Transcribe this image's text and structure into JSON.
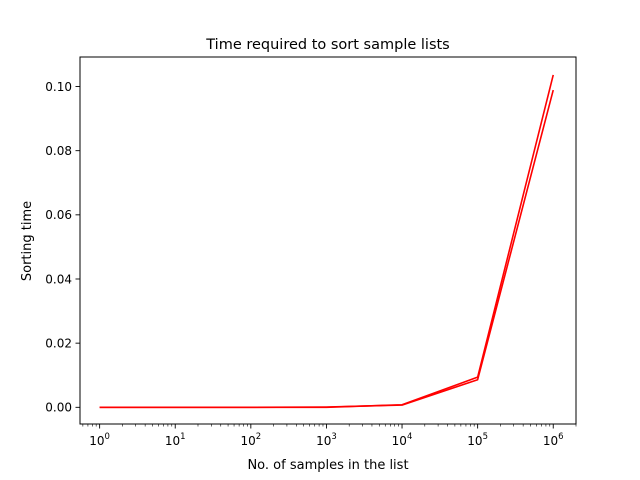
{
  "chart_data": {
    "type": "line",
    "title": "Time required to sort sample lists",
    "xlabel": "No. of samples in the list",
    "ylabel": "Sorting time",
    "xscale": "log",
    "xlim": [
      0.55,
      2000000
    ],
    "ylim": [
      -0.0052,
      0.1092
    ],
    "grid": false,
    "line_color": "#ff0000",
    "x_ticks": [
      {
        "value": 1,
        "base": "10",
        "exp": "0"
      },
      {
        "value": 10,
        "base": "10",
        "exp": "1"
      },
      {
        "value": 100,
        "base": "10",
        "exp": "2"
      },
      {
        "value": 1000,
        "base": "10",
        "exp": "3"
      },
      {
        "value": 10000,
        "base": "10",
        "exp": "4"
      },
      {
        "value": 100000,
        "base": "10",
        "exp": "5"
      },
      {
        "value": 1000000,
        "base": "10",
        "exp": "6"
      }
    ],
    "y_ticks": [
      {
        "value": 0.0,
        "label": "0.00"
      },
      {
        "value": 0.02,
        "label": "0.02"
      },
      {
        "value": 0.04,
        "label": "0.04"
      },
      {
        "value": 0.06,
        "label": "0.06"
      },
      {
        "value": 0.08,
        "label": "0.08"
      },
      {
        "value": 0.1,
        "label": "0.10"
      }
    ],
    "x": [
      1,
      10,
      100,
      1000,
      10000,
      100000,
      1000000
    ],
    "series": [
      {
        "values": [
          0.0,
          0.0,
          0.0,
          0.0,
          0.0008,
          0.0094,
          0.1036
        ]
      },
      {
        "values": [
          0.0,
          0.0,
          0.0,
          0.0001,
          0.0007,
          0.0086,
          0.0989
        ]
      }
    ]
  }
}
